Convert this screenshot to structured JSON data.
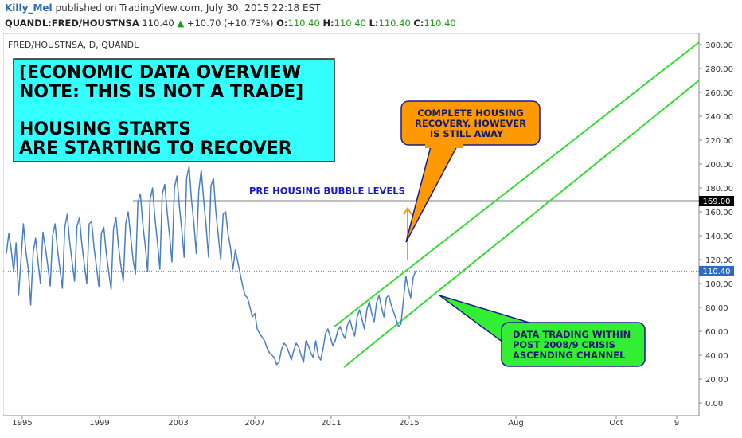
{
  "header": {
    "author": "Killy_Mel",
    "published_text": "published on TradingView.com, July 30, 2015 22:18 EST",
    "symbol": "QUANDL:FRED/HOUSTNSA",
    "last": "110.40",
    "change_arrow": "up-triangle-icon",
    "change": "+10.70 (+10.73%)",
    "o_label": "O:",
    "o_value": "110.40",
    "h_label": "H:",
    "h_value": "110.40",
    "l_label": "L:",
    "l_value": "110.40",
    "c_label": "C:",
    "c_value": "110.40"
  },
  "chart": {
    "series_label": "FRED/HOUSTNSA, D, QUANDL",
    "note_box": {
      "lines": [
        "[ECONOMIC DATA OVERVIEW",
        "NOTE: THIS IS NOT A TRADE]",
        "",
        "HOUSING STARTS",
        "ARE STARTING TO RECOVER"
      ]
    },
    "callout_orange": {
      "lines": [
        "COMPLETE HOUSING",
        "RECOVERY, HOWEVER",
        "IS STILL AWAY"
      ]
    },
    "callout_green": {
      "lines": [
        "DATA TRADING WITHIN",
        "POST 2008/9 CRISIS",
        "ASCENDING CHANNEL"
      ]
    },
    "hline_label": "PRE HOUSING BUBBLE LEVELS",
    "hline_value_label": "169.00",
    "last_value_label": "110.40",
    "colors": {
      "series": "#4a7fc7",
      "channel": "#33dd33",
      "hline": "#000000",
      "note_bg": "#33ffff",
      "orange": "#ff9900",
      "green_box": "#33ee33",
      "hline_text": "#1a1acc"
    }
  },
  "chart_data": {
    "type": "line",
    "title": "",
    "xlabel": "",
    "ylabel": "",
    "ylim": [
      -10,
      305
    ],
    "y_ticks": [
      0,
      20,
      40,
      60,
      80,
      100,
      120,
      140,
      160,
      180,
      200,
      220,
      240,
      260,
      280,
      300
    ],
    "y_tick_labels": [
      "0.00",
      "20.00",
      "40.00",
      "60.00",
      "80.00",
      "100.00",
      "120.00",
      "140.00",
      "160.00",
      "180.00",
      "200.00",
      "220.00",
      "240.00",
      "260.00",
      "280.00",
      "300.00"
    ],
    "x_tick_labels": [
      "1995",
      "1999",
      "2003",
      "2007",
      "2011",
      "2015",
      "Aug",
      "Oct",
      "9"
    ],
    "series": [
      {
        "values": [
          125,
          142,
          128,
          110,
          134,
          90,
          120,
          150,
          127,
          112,
          82,
          126,
          138,
          118,
          100,
          143,
          130,
          115,
          98,
          140,
          150,
          128,
          112,
          96,
          147,
          158,
          135,
          118,
          102,
          148,
          155,
          133,
          116,
          100,
          150,
          152,
          130,
          114,
          97,
          142,
          147,
          126,
          110,
          95,
          146,
          155,
          132,
          115,
          102,
          150,
          160,
          140,
          120,
          108,
          168,
          175,
          150,
          132,
          110,
          170,
          180,
          155,
          135,
          112,
          175,
          183,
          160,
          140,
          118,
          180,
          190,
          165,
          145,
          122,
          188,
          198,
          170,
          150,
          125,
          178,
          195,
          170,
          148,
          122,
          182,
          188,
          160,
          140,
          120,
          158,
          160,
          142,
          130,
          112,
          128,
          118,
          108,
          98,
          90,
          88,
          80,
          72,
          75,
          62,
          58,
          55,
          52,
          46,
          42,
          40,
          38,
          32,
          35,
          45,
          50,
          48,
          42,
          36,
          44,
          50,
          47,
          40,
          34,
          52,
          48,
          42,
          38,
          52,
          40,
          36,
          45,
          58,
          62,
          55,
          48,
          52,
          60,
          64,
          58,
          54,
          65,
          70,
          62,
          56,
          72,
          78,
          70,
          62,
          78,
          85,
          75,
          68,
          84,
          90,
          80,
          72,
          88,
          90,
          82,
          76,
          70,
          64,
          66,
          86,
          106,
          96,
          88,
          105,
          110.4
        ]
      }
    ],
    "annotations": {
      "horizontal_level": 169,
      "last_value": 110.4,
      "channel_upper": [
        [
          67,
          0.56
        ],
        [
          1,
          300
        ]
      ],
      "channel_lower": [
        [
          0,
          0.56
        ],
        [
          1,
          300
        ]
      ],
      "arrow_up": [
        120,
        163
      ]
    }
  }
}
